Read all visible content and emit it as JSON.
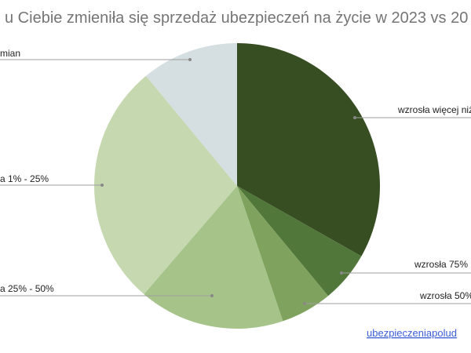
{
  "chart_data": {
    "type": "pie",
    "title": "u Ciebie zmieniła się sprzedaż ubezpieczeń na życie w 2023 vs 20",
    "slices": [
      {
        "label": "wzrosła więcej niż",
        "value": 33.2,
        "color": "#374d22"
      },
      {
        "label": "wzrosła 75%",
        "value": 5.8,
        "color": "#52773a"
      },
      {
        "label": "wzrosła 50%",
        "value": 5.8,
        "color": "#7fa35e"
      },
      {
        "label": "a 25% - 50%",
        "value": 16.5,
        "color": "#a6c38a"
      },
      {
        "label": "a 1% - 25%",
        "value": 27.7,
        "color": "#c5d8b0"
      },
      {
        "label": "mian",
        "value": 11.0,
        "color": "#d5dee0"
      }
    ],
    "legend": "labels with leader lines"
  },
  "source_link": "ubezpieczeniapolud"
}
